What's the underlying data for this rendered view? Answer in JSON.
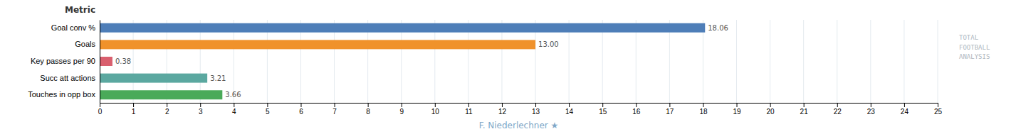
{
  "chart_data": {
    "type": "bar",
    "orientation": "horizontal",
    "categories": [
      "Goal conv %",
      "Goals",
      "Key passes per 90",
      "Succ att actions",
      "Touches in opp box"
    ],
    "values": [
      18.06,
      13.0,
      0.38,
      3.21,
      3.66
    ],
    "value_labels": [
      "18.06",
      "13.00",
      "0.38",
      "3.21",
      "3.66"
    ],
    "data_labels": true,
    "colors": [
      "#4e7eb8",
      "#f0922b",
      "#d95f6e",
      "#5ba8a0",
      "#4aaa59"
    ],
    "xlabel": "F. Niederlechner ★",
    "annotations": [
      "Metric",
      "TOTAL\nFOOTBALL\nANALYSIS"
    ],
    "xlim": [
      0,
      25
    ],
    "xticks": [
      0,
      1,
      2,
      3,
      4,
      5,
      6,
      7,
      8,
      9,
      10,
      11,
      12,
      13,
      14,
      15,
      16,
      17,
      18,
      19,
      20,
      21,
      22,
      23,
      24,
      25
    ],
    "grid": true
  }
}
